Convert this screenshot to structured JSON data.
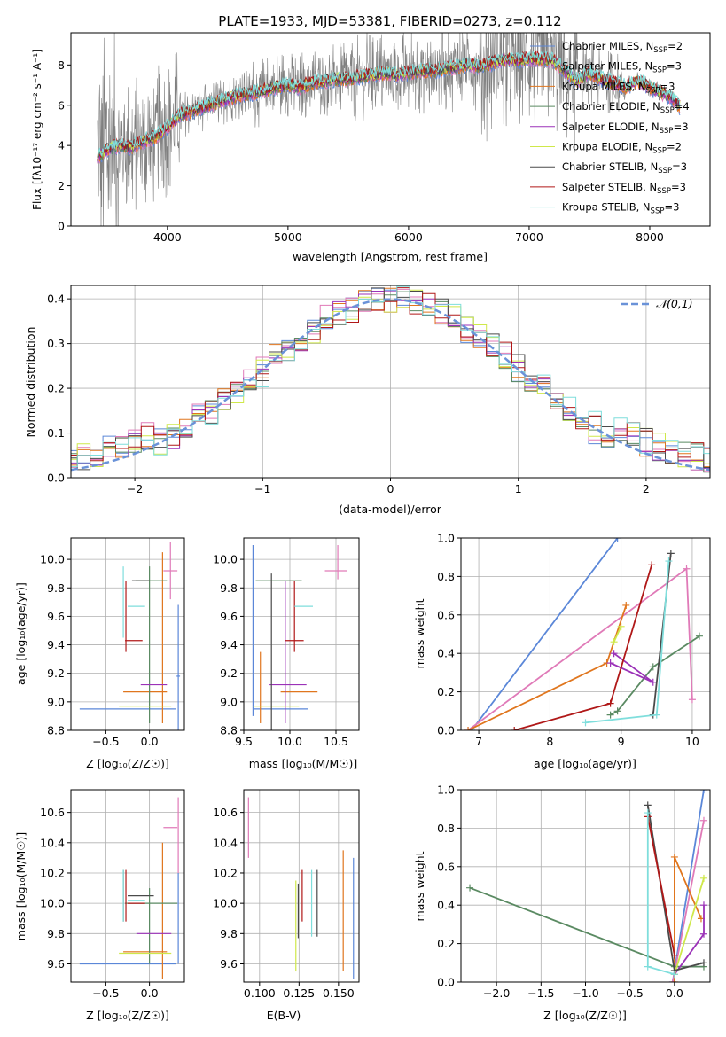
{
  "figure_title": "PLATE=1933, MJD=53381, FIBERID=0273, z=0.112",
  "models": [
    {
      "name": "Chabrier MILES",
      "nssp": 2,
      "color": "#5b87d8"
    },
    {
      "name": "Salpeter MILES",
      "nssp": 3,
      "color": "#e07ab8"
    },
    {
      "name": "Kroupa MILES",
      "nssp": 3,
      "color": "#e0761e"
    },
    {
      "name": "Chabrier ELODIE",
      "nssp": 4,
      "color": "#5a8a62"
    },
    {
      "name": "Salpeter ELODIE",
      "nssp": 3,
      "color": "#9b32b8"
    },
    {
      "name": "Kroupa ELODIE",
      "nssp": 2,
      "color": "#cfe84a"
    },
    {
      "name": "Chabrier STELIB",
      "nssp": 3,
      "color": "#4a4a4a"
    },
    {
      "name": "Salpeter STELIB",
      "nssp": 3,
      "color": "#b01818"
    },
    {
      "name": "Kroupa STELIB",
      "nssp": 3,
      "color": "#7fdedc"
    }
  ],
  "chart_data": [
    {
      "id": "spectrum",
      "type": "line",
      "xlabel": "wavelength [Angstrom, rest frame]",
      "ylabel": "Flux [fλ10⁻¹⁷ erg cm⁻² s⁻¹ A⁻¹]",
      "xlim": [
        3200,
        8500
      ],
      "ylim": [
        0,
        9.6
      ],
      "xticks": [
        4000,
        5000,
        6000,
        7000,
        8000
      ],
      "yticks": [
        0,
        2,
        4,
        6,
        8
      ],
      "data_series": {
        "name": "data",
        "color": "#808080"
      },
      "continuum": {
        "x": [
          3420,
          3500,
          3600,
          3700,
          3800,
          3900,
          4000,
          4100,
          4200,
          4300,
          4400,
          4500,
          4600,
          4700,
          4800,
          4900,
          5000,
          5100,
          5200,
          5300,
          5400,
          5500,
          5600,
          5700,
          5800,
          5900,
          6000,
          6100,
          6200,
          6300,
          6400,
          6500,
          6600,
          6700,
          6800,
          6900,
          7000,
          7100,
          7200,
          7300,
          7400,
          7500,
          7600,
          7700,
          7800,
          7900,
          8000,
          8100,
          8200,
          8250
        ],
        "y": [
          3.4,
          3.8,
          4.0,
          3.9,
          4.2,
          4.4,
          4.9,
          5.5,
          5.7,
          5.9,
          6.1,
          6.3,
          6.5,
          6.6,
          6.7,
          6.9,
          7.0,
          6.9,
          7.1,
          7.2,
          7.3,
          7.3,
          7.4,
          7.5,
          7.6,
          7.5,
          7.6,
          7.7,
          7.7,
          7.8,
          7.9,
          8.0,
          7.9,
          8.1,
          8.3,
          8.2,
          8.3,
          8.3,
          8.2,
          7.7,
          7.2,
          7.6,
          7.3,
          7.1,
          6.9,
          7.2,
          6.9,
          6.6,
          6.3,
          5.9
        ]
      }
    },
    {
      "id": "residuals",
      "type": "histogram",
      "xlabel": "(data-model)/error",
      "ylabel": "Normed distribution",
      "xlim": [
        -2.5,
        2.5
      ],
      "ylim": [
        0,
        0.43
      ],
      "xticks": [
        -2,
        -1,
        0,
        1,
        2
      ],
      "yticks": [
        0.0,
        0.1,
        0.2,
        0.3,
        0.4
      ],
      "reference_curve": {
        "name": "𝒩(0,1)",
        "mean": 0,
        "sigma": 1
      },
      "legend_position": "top-right",
      "grid": true
    },
    {
      "id": "age-vs-Z",
      "type": "errorbar",
      "xlabel": "Z [log₁₀(Z/Z☉)]",
      "ylabel": "age  [log₁₀(age/yr)]",
      "xlim": [
        -0.9,
        0.4
      ],
      "ylim": [
        8.8,
        10.15
      ],
      "xticks": [
        -0.5,
        0.0
      ],
      "yticks": [
        8.8,
        9.0,
        9.2,
        9.4,
        9.6,
        9.8,
        10.0
      ],
      "points": [
        {
          "model": 0,
          "x": -0.25,
          "xerr": 0.55,
          "y": 8.95,
          "yerr": 0.0
        },
        {
          "model": 0,
          "x": 0.33,
          "xerr": 0.02,
          "y": 9.18,
          "yerr": 0.5
        },
        {
          "model": 1,
          "x": 0.24,
          "xerr": 0.08,
          "y": 9.92,
          "yerr": 0.2
        },
        {
          "model": 2,
          "x": -0.05,
          "xerr": 0.25,
          "y": 9.07,
          "yerr": 0.0
        },
        {
          "model": 2,
          "x": 0.15,
          "xerr": 0.0,
          "y": 9.45,
          "yerr": 0.6
        },
        {
          "model": 3,
          "x": 0.02,
          "xerr": 0.18,
          "y": 9.85,
          "yerr": 0.0
        },
        {
          "model": 3,
          "x": 0.0,
          "xerr": 0.0,
          "y": 9.4,
          "yerr": 0.55
        },
        {
          "model": 4,
          "x": 0.05,
          "xerr": 0.15,
          "y": 9.12,
          "yerr": 0.0
        },
        {
          "model": 5,
          "x": -0.05,
          "xerr": 0.3,
          "y": 8.97,
          "yerr": 0.0
        },
        {
          "model": 6,
          "x": -0.1,
          "xerr": 0.1,
          "y": 9.85,
          "yerr": 0.0
        },
        {
          "model": 7,
          "x": -0.18,
          "xerr": 0.1,
          "y": 9.43,
          "yerr": 0.0
        },
        {
          "model": 7,
          "x": -0.27,
          "xerr": 0.0,
          "y": 9.6,
          "yerr": 0.25
        },
        {
          "model": 8,
          "x": -0.15,
          "xerr": 0.1,
          "y": 9.67,
          "yerr": 0.0
        },
        {
          "model": 8,
          "x": -0.3,
          "xerr": 0.0,
          "y": 9.7,
          "yerr": 0.25
        }
      ]
    },
    {
      "id": "age-vs-mass",
      "type": "errorbar",
      "xlabel": "mass [log₁₀(M/M☉)]",
      "ylabel": "",
      "xlim": [
        9.5,
        10.75
      ],
      "ylim": [
        8.8,
        10.15
      ],
      "xticks": [
        9.5,
        10.0,
        10.5
      ],
      "yticks": [
        8.8,
        9.0,
        9.2,
        9.4,
        9.6,
        9.8,
        10.0
      ],
      "points": [
        {
          "model": 0,
          "x": 9.9,
          "xerr": 0.3,
          "y": 8.95,
          "yerr": 0.0
        },
        {
          "model": 0,
          "x": 9.6,
          "xerr": 0.0,
          "y": 9.5,
          "yerr": 0.6
        },
        {
          "model": 1,
          "x": 10.5,
          "xerr": 0.12,
          "y": 9.92,
          "yerr": 0.0
        },
        {
          "model": 1,
          "x": 10.52,
          "xerr": 0.0,
          "y": 9.98,
          "yerr": 0.12
        },
        {
          "model": 2,
          "x": 10.1,
          "xerr": 0.2,
          "y": 9.07,
          "yerr": 0.0
        },
        {
          "model": 2,
          "x": 9.68,
          "xerr": 0.0,
          "y": 9.1,
          "yerr": 0.25
        },
        {
          "model": 3,
          "x": 9.88,
          "xerr": 0.25,
          "y": 9.85,
          "yerr": 0.0
        },
        {
          "model": 4,
          "x": 9.98,
          "xerr": 0.2,
          "y": 9.12,
          "yerr": 0.0
        },
        {
          "model": 4,
          "x": 9.95,
          "xerr": 0.0,
          "y": 9.35,
          "yerr": 0.5
        },
        {
          "model": 5,
          "x": 9.85,
          "xerr": 0.25,
          "y": 8.97,
          "yerr": 0.0
        },
        {
          "model": 6,
          "x": 9.8,
          "xerr": 0.0,
          "y": 9.35,
          "yerr": 0.55
        },
        {
          "model": 7,
          "x": 10.05,
          "xerr": 0.1,
          "y": 9.43,
          "yerr": 0.0
        },
        {
          "model": 7,
          "x": 10.05,
          "xerr": 0.0,
          "y": 9.6,
          "yerr": 0.25
        },
        {
          "model": 8,
          "x": 10.15,
          "xerr": 0.1,
          "y": 9.67,
          "yerr": 0.0
        }
      ]
    },
    {
      "id": "weight-vs-age",
      "type": "line",
      "xlabel": "age  [log₁₀(age/yr)]",
      "ylabel": "mass weight",
      "xlim": [
        6.75,
        10.25
      ],
      "ylim": [
        0,
        1.0
      ],
      "xticks": [
        7,
        8,
        9,
        10
      ],
      "yticks": [
        0.0,
        0.2,
        0.4,
        0.6,
        0.8,
        1.0
      ],
      "grid": true,
      "series": [
        {
          "model": 0,
          "x": [
            6.9,
            8.95
          ],
          "y": [
            0.0,
            1.0
          ]
        },
        {
          "model": 1,
          "x": [
            6.85,
            9.92,
            10.0
          ],
          "y": [
            0.0,
            0.84,
            0.16
          ]
        },
        {
          "model": 2,
          "x": [
            6.85,
            8.8,
            9.07
          ],
          "y": [
            0.0,
            0.35,
            0.65
          ]
        },
        {
          "model": 3,
          "x": [
            8.85,
            8.95,
            9.45,
            10.1
          ],
          "y": [
            0.08,
            0.1,
            0.33,
            0.49
          ]
        },
        {
          "model": 4,
          "x": [
            8.9,
            9.45,
            8.85
          ],
          "y": [
            0.4,
            0.25,
            0.35
          ]
        },
        {
          "model": 5,
          "x": [
            8.9,
            9.0
          ],
          "y": [
            0.46,
            0.54
          ]
        },
        {
          "model": 6,
          "x": [
            9.45,
            9.7
          ],
          "y": [
            0.08,
            0.92
          ]
        },
        {
          "model": 7,
          "x": [
            7.5,
            8.85,
            9.43
          ],
          "y": [
            0.0,
            0.14,
            0.86
          ]
        },
        {
          "model": 8,
          "x": [
            8.5,
            9.5,
            9.67
          ],
          "y": [
            0.04,
            0.08,
            0.88
          ]
        }
      ]
    },
    {
      "id": "mass-vs-Z",
      "type": "errorbar",
      "xlabel": "Z [log₁₀(Z/Z☉)]",
      "ylabel": "mass [log₁₀(M/M☉)]",
      "xlim": [
        -0.9,
        0.4
      ],
      "ylim": [
        9.48,
        10.75
      ],
      "xticks": [
        -0.5,
        0.0
      ],
      "yticks": [
        9.6,
        9.8,
        10.0,
        10.2,
        10.4,
        10.6
      ],
      "points": [
        {
          "model": 0,
          "x": -0.25,
          "xerr": 0.55,
          "y": 9.6,
          "yerr": 0.0
        },
        {
          "model": 0,
          "x": 0.33,
          "xerr": 0.0,
          "y": 9.9,
          "yerr": 0.3
        },
        {
          "model": 1,
          "x": 0.24,
          "xerr": 0.08,
          "y": 10.5,
          "yerr": 0.0
        },
        {
          "model": 1,
          "x": 0.33,
          "xerr": 0.0,
          "y": 10.45,
          "yerr": 0.25
        },
        {
          "model": 2,
          "x": -0.05,
          "xerr": 0.25,
          "y": 9.68,
          "yerr": 0.0
        },
        {
          "model": 2,
          "x": 0.15,
          "xerr": 0.0,
          "y": 9.95,
          "yerr": 0.45
        },
        {
          "model": 3,
          "x": 0.02,
          "xerr": 0.3,
          "y": 10.0,
          "yerr": 0.0
        },
        {
          "model": 3,
          "x": 0.0,
          "xerr": 0.0,
          "y": 9.85,
          "yerr": 0.25
        },
        {
          "model": 4,
          "x": 0.05,
          "xerr": 0.2,
          "y": 9.8,
          "yerr": 0.0
        },
        {
          "model": 5,
          "x": -0.05,
          "xerr": 0.3,
          "y": 9.67,
          "yerr": 0.0
        },
        {
          "model": 6,
          "x": -0.1,
          "xerr": 0.15,
          "y": 10.05,
          "yerr": 0.0
        },
        {
          "model": 6,
          "x": -0.3,
          "xerr": 0.0,
          "y": 10.05,
          "yerr": 0.17
        },
        {
          "model": 7,
          "x": -0.15,
          "xerr": 0.1,
          "y": 10.0,
          "yerr": 0.0
        },
        {
          "model": 7,
          "x": -0.27,
          "xerr": 0.0,
          "y": 10.05,
          "yerr": 0.17
        },
        {
          "model": 8,
          "x": -0.15,
          "xerr": 0.1,
          "y": 10.02,
          "yerr": 0.0
        },
        {
          "model": 8,
          "x": -0.3,
          "xerr": 0.0,
          "y": 10.05,
          "yerr": 0.17
        }
      ]
    },
    {
      "id": "mass-vs-ebv",
      "type": "errorbar",
      "xlabel": "E(B-V)",
      "ylabel": "",
      "xlim": [
        0.09,
        0.163
      ],
      "ylim": [
        9.48,
        10.75
      ],
      "xticks": [
        0.1,
        0.125,
        0.15
      ],
      "yticks": [
        9.6,
        9.8,
        10.0,
        10.2,
        10.4,
        10.6
      ],
      "points": [
        {
          "model": 1,
          "x": 0.093,
          "xerr": 0.0,
          "y": 10.5,
          "yerr": 0.2
        },
        {
          "model": 5,
          "x": 0.123,
          "xerr": 0.0,
          "y": 9.85,
          "yerr": 0.3
        },
        {
          "model": 6,
          "x": 0.1245,
          "xerr": 0.0,
          "y": 9.95,
          "yerr": 0.18
        },
        {
          "model": 7,
          "x": 0.127,
          "xerr": 0.0,
          "y": 10.05,
          "yerr": 0.17
        },
        {
          "model": 8,
          "x": 0.133,
          "xerr": 0.0,
          "y": 10.0,
          "yerr": 0.22
        },
        {
          "model": 6,
          "x": 0.1365,
          "xerr": 0.0,
          "y": 10.0,
          "yerr": 0.22
        },
        {
          "model": 2,
          "x": 0.153,
          "xerr": 0.0,
          "y": 9.95,
          "yerr": 0.4
        },
        {
          "model": 0,
          "x": 0.1595,
          "xerr": 0.0,
          "y": 9.9,
          "yerr": 0.4
        }
      ]
    },
    {
      "id": "weight-vs-Z",
      "type": "line",
      "xlabel": "Z [log₁₀(Z/Z☉)]",
      "ylabel": "mass weight",
      "xlim": [
        -2.4,
        0.4
      ],
      "ylim": [
        0,
        1.0
      ],
      "xticks": [
        -2.0,
        -1.5,
        -1.0,
        -0.5,
        0.0
      ],
      "yticks": [
        0.0,
        0.2,
        0.4,
        0.6,
        0.8,
        1.0
      ],
      "grid": true,
      "series": [
        {
          "model": 0,
          "x": [
            -0.02,
            0.33
          ],
          "y": [
            0.0,
            1.0
          ]
        },
        {
          "model": 1,
          "x": [
            -0.02,
            0.33
          ],
          "y": [
            0.0,
            0.84
          ]
        },
        {
          "model": 2,
          "x": [
            0.0,
            0.0,
            0.3
          ],
          "y": [
            0.0,
            0.65,
            0.33
          ]
        },
        {
          "model": 3,
          "x": [
            -2.3,
            0.0,
            0.33
          ],
          "y": [
            0.49,
            0.08,
            0.08
          ]
        },
        {
          "model": 4,
          "x": [
            0.0,
            0.33,
            0.33
          ],
          "y": [
            0.04,
            0.25,
            0.4
          ]
        },
        {
          "model": 5,
          "x": [
            0.0,
            0.33
          ],
          "y": [
            0.04,
            0.54
          ]
        },
        {
          "model": 6,
          "x": [
            -0.3,
            0.0,
            0.33
          ],
          "y": [
            0.92,
            0.06,
            0.1
          ]
        },
        {
          "model": 7,
          "x": [
            -0.3,
            0.0
          ],
          "y": [
            0.86,
            0.14
          ]
        },
        {
          "model": 8,
          "x": [
            -0.3,
            -0.3,
            0.0
          ],
          "y": [
            0.88,
            0.08,
            0.04
          ]
        }
      ]
    }
  ]
}
